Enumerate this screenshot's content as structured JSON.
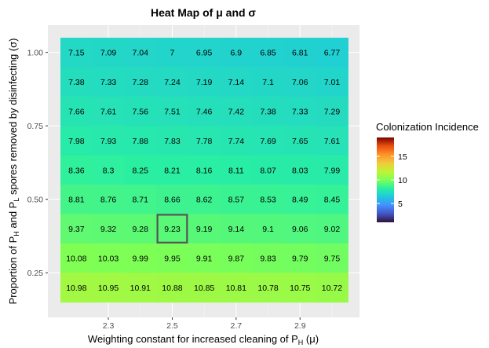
{
  "chart_data": {
    "type": "heatmap",
    "title": "Heat Map of μ and σ",
    "xlabel": "Weighting constant for increased cleaning of P",
    "xlabel_sub": "H",
    "xlabel_tail": " (μ)",
    "ylabel_parts": [
      "Proportion of P",
      "H",
      " and P",
      "L",
      " spores removed by disinfecting (σ)"
    ],
    "x": [
      2.2,
      2.3,
      2.4,
      2.5,
      2.6,
      2.7,
      2.8,
      2.9,
      3.0
    ],
    "y": [
      1.0,
      0.9,
      0.8,
      0.7,
      0.6,
      0.5,
      0.4,
      0.3,
      0.2
    ],
    "x_ticks": [
      "2.3",
      "2.5",
      "2.7",
      "2.9"
    ],
    "x_tick_values": [
      2.3,
      2.5,
      2.7,
      2.9
    ],
    "y_ticks": [
      "1.00",
      "0.75",
      "0.50",
      "0.25"
    ],
    "y_tick_values": [
      1.0,
      0.75,
      0.5,
      0.25
    ],
    "values": [
      [
        7.15,
        7.09,
        7.04,
        7,
        6.95,
        6.9,
        6.85,
        6.81,
        6.77
      ],
      [
        7.38,
        7.33,
        7.28,
        7.24,
        7.19,
        7.14,
        7.1,
        7.06,
        7.01
      ],
      [
        7.66,
        7.61,
        7.56,
        7.51,
        7.46,
        7.42,
        7.38,
        7.33,
        7.29
      ],
      [
        7.98,
        7.93,
        7.88,
        7.83,
        7.78,
        7.74,
        7.69,
        7.65,
        7.61
      ],
      [
        8.36,
        8.3,
        8.25,
        8.21,
        8.16,
        8.11,
        8.07,
        8.03,
        7.99
      ],
      [
        8.81,
        8.76,
        8.71,
        8.66,
        8.62,
        8.57,
        8.53,
        8.49,
        8.45
      ],
      [
        9.37,
        9.32,
        9.28,
        9.23,
        9.19,
        9.14,
        9.1,
        9.06,
        9.02
      ],
      [
        10.08,
        10.03,
        9.99,
        9.95,
        9.91,
        9.87,
        9.83,
        9.79,
        9.75
      ],
      [
        10.98,
        10.95,
        10.91,
        10.88,
        10.85,
        10.81,
        10.78,
        10.75,
        10.72
      ]
    ],
    "highlight": {
      "x": 2.5,
      "y": 0.4
    },
    "colorbar": {
      "title": "Colonization Incidence",
      "min": 1,
      "max": 19,
      "ticks": [
        5,
        10,
        15
      ],
      "tick_labels": [
        "5",
        "10",
        "15"
      ],
      "colormap": "turbo"
    },
    "grid": true
  }
}
